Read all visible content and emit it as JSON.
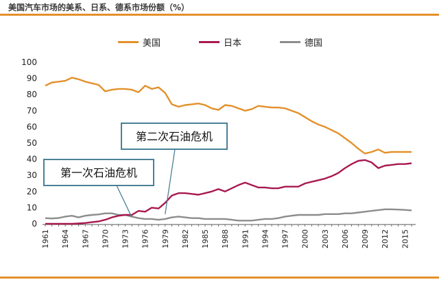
{
  "title": "美国汽车市场的美系、日系、德系市场份额（%）",
  "chart_data": {
    "type": "line",
    "x": [
      1961,
      1962,
      1963,
      1964,
      1965,
      1966,
      1967,
      1968,
      1969,
      1970,
      1971,
      1972,
      1973,
      1974,
      1975,
      1976,
      1977,
      1978,
      1979,
      1980,
      1981,
      1982,
      1983,
      1984,
      1985,
      1986,
      1987,
      1988,
      1989,
      1990,
      1991,
      1992,
      1993,
      1994,
      1995,
      1996,
      1997,
      1998,
      1999,
      2000,
      2001,
      2002,
      2003,
      2004,
      2005,
      2006,
      2007,
      2008,
      2009,
      2010,
      2011,
      2012,
      2013,
      2014,
      2015,
      2016
    ],
    "xticks": [
      "1961",
      "1964",
      "1967",
      "1970",
      "1973",
      "1976",
      "1979",
      "1982",
      "1985",
      "1988",
      "1991",
      "1994",
      "1997",
      "2000",
      "2003",
      "2006",
      "2009",
      "2012",
      "2015"
    ],
    "ylim": [
      0,
      100
    ],
    "yticks": [
      0,
      10,
      20,
      30,
      40,
      50,
      60,
      70,
      80,
      90,
      100
    ],
    "legend": "top",
    "series": [
      {
        "name": "美国",
        "color": "#e3902a",
        "values": [
          85.5,
          87.5,
          88,
          88.5,
          90.5,
          89.5,
          88,
          87,
          86,
          82,
          83,
          83.5,
          83.5,
          83,
          81.5,
          85.5,
          83.5,
          84.5,
          81,
          74,
          72.5,
          73.5,
          74,
          74.5,
          73.5,
          71.5,
          70.5,
          73.5,
          73,
          71.5,
          70,
          71,
          73,
          72.5,
          72,
          72,
          71.5,
          70,
          68.5,
          66,
          63.5,
          61.5,
          60,
          58,
          56,
          53,
          50,
          46.5,
          43.5,
          44.5,
          46,
          44,
          44.5,
          44.5,
          44.5,
          44.5
        ]
      },
      {
        "name": "日本",
        "color": "#a8184e",
        "values": [
          0,
          0,
          0,
          0,
          0,
          0.2,
          0.5,
          1,
          1.5,
          2.5,
          4,
          5,
          5.5,
          5.5,
          8,
          7.5,
          10,
          9.5,
          13,
          17.5,
          19,
          19,
          18.5,
          18,
          19,
          20,
          21.5,
          20,
          22,
          24,
          25.5,
          24,
          22.5,
          22.5,
          22,
          22,
          23,
          23,
          23,
          25,
          26,
          27,
          28,
          29.5,
          31.5,
          34.5,
          37,
          39,
          39.5,
          38,
          34.5,
          36,
          36.5,
          37,
          37,
          37.5
        ]
      },
      {
        "name": "德国",
        "color": "#8c8c8c",
        "values": [
          3.5,
          3.3,
          3.6,
          4.5,
          5,
          4,
          5,
          5.5,
          5.8,
          6.5,
          6.5,
          5.5,
          5.5,
          4.5,
          3.5,
          3,
          3,
          2.5,
          3,
          4,
          4.5,
          4,
          3.5,
          3.5,
          3,
          3,
          3,
          3,
          2.5,
          2,
          2,
          2,
          2.5,
          3,
          3,
          3.5,
          4.5,
          5,
          5.5,
          5.5,
          5.5,
          5.5,
          6,
          6,
          6,
          6.5,
          6.5,
          7,
          7.5,
          8,
          8.5,
          9,
          9,
          8.8,
          8.6,
          8.3
        ]
      }
    ],
    "annotations": [
      {
        "text": "第一次石油危机",
        "x": 1974
      },
      {
        "text": "第二次石油危机",
        "x": 1979
      }
    ]
  }
}
